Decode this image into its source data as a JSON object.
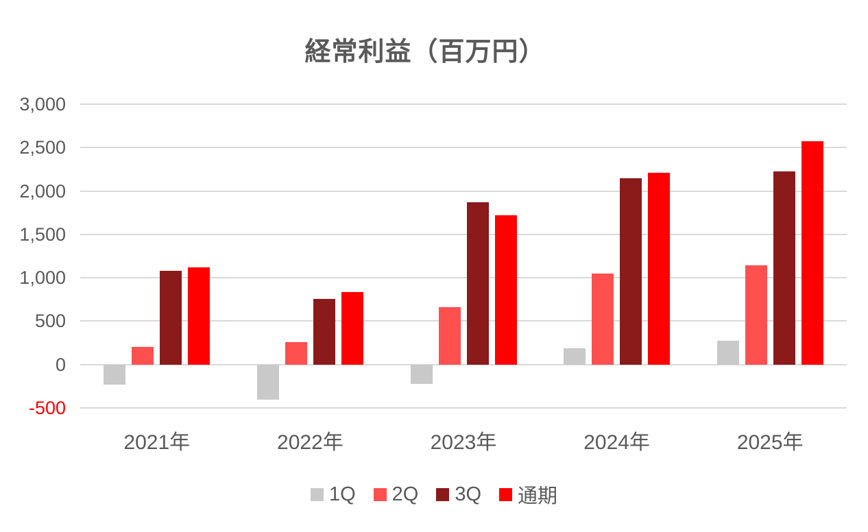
{
  "title": "経常利益（百万円）",
  "colors": {
    "text": "#595959",
    "grid": "#d9d9d9",
    "negative_tick": "#ff0000",
    "series_1q": "#c9c9c9",
    "series_2q": "#ff5050",
    "series_3q": "#8b1a1a",
    "series_fy": "#ff0000"
  },
  "chart_data": {
    "type": "bar",
    "title": "経常利益（百万円）",
    "categories": [
      "2021年",
      "2022年",
      "2023年",
      "2024年",
      "2025年"
    ],
    "series": [
      {
        "key": "1q",
        "name": "1Q",
        "color": "#c9c9c9",
        "values": [
          -230,
          -405,
          -220,
          190,
          275
        ]
      },
      {
        "key": "2q",
        "name": "2Q",
        "color": "#ff5050",
        "values": [
          200,
          255,
          660,
          1045,
          1145
        ]
      },
      {
        "key": "3q",
        "name": "3Q",
        "color": "#8b1a1a",
        "values": [
          1080,
          755,
          1870,
          2145,
          2225
        ]
      },
      {
        "key": "fy",
        "name": "通期",
        "color": "#ff0000",
        "values": [
          1120,
          835,
          1720,
          2210,
          2575
        ]
      }
    ],
    "ylim": [
      -500,
      3000
    ],
    "ytick_step": 500,
    "ytick_labels": [
      "3,000",
      "2,500",
      "2,000",
      "1,500",
      "1,000",
      "500",
      "0",
      "-500"
    ],
    "negative_tick_labels": [
      "-500"
    ],
    "grid": "horizontal",
    "legend_position": "bottom",
    "legend_entries": [
      "1Q",
      "2Q",
      "3Q",
      "通期"
    ],
    "xlabel": "",
    "ylabel": ""
  }
}
